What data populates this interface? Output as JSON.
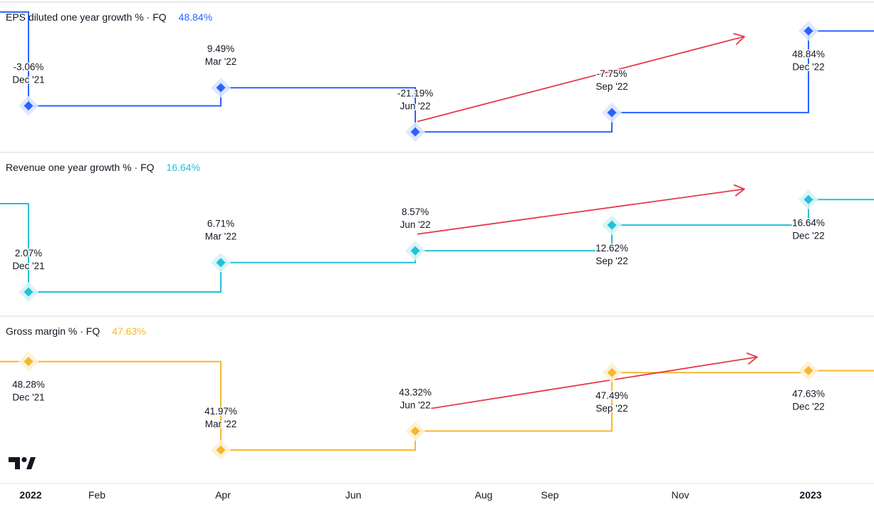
{
  "chart_data": {
    "type": "line",
    "x_axis": {
      "ticks": [
        {
          "label": "2022",
          "bold": true,
          "date": "2022-01-01"
        },
        {
          "label": "Feb",
          "bold": false,
          "date": "2022-02-01"
        },
        {
          "label": "Apr",
          "bold": false,
          "date": "2022-04-01"
        },
        {
          "label": "Jun",
          "bold": false,
          "date": "2022-06-01"
        },
        {
          "label": "Aug",
          "bold": false,
          "date": "2022-08-01"
        },
        {
          "label": "Sep",
          "bold": false,
          "date": "2022-09-01"
        },
        {
          "label": "Nov",
          "bold": false,
          "date": "2022-11-01"
        },
        {
          "label": "2023",
          "bold": true,
          "date": "2023-01-01"
        }
      ]
    },
    "panes": [
      {
        "id": "eps",
        "title": "EPS diluted one year growth % · FQ",
        "current_value": "48.84%",
        "color": "#2962ff",
        "highlight": "#dbe4ff",
        "ylim": [
          -26,
          58
        ],
        "leading_value": 62,
        "trailing_value": 48.84,
        "points": [
          {
            "date": "2021-12-31",
            "value": -3.06,
            "label_value": "-3.06%",
            "label_period": "Dec '21",
            "label_pos": "above"
          },
          {
            "date": "2022-03-31",
            "value": 9.49,
            "label_value": "9.49%",
            "label_period": "Mar '22",
            "label_pos": "above"
          },
          {
            "date": "2022-06-30",
            "value": -21.19,
            "label_value": "-21.19%",
            "label_period": "Jun '22",
            "label_pos": "above"
          },
          {
            "date": "2022-09-30",
            "value": -7.75,
            "label_value": "-7.75%",
            "label_period": "Sep '22",
            "label_pos": "above"
          },
          {
            "date": "2022-12-31",
            "value": 48.84,
            "label_value": "48.84%",
            "label_period": "Dec '22",
            "label_pos": "below"
          }
        ],
        "trend_arrow": {
          "from": [
            "2022-07-01",
            -14
          ],
          "to": [
            "2022-12-01",
            45
          ]
        }
      },
      {
        "id": "revenue",
        "title": "Revenue one year growth % · FQ",
        "current_value": "16.64%",
        "color": "#22c1d6",
        "highlight": "#d4f3f7",
        "ylim": [
          0.5,
          21.5
        ],
        "leading_value": 16,
        "trailing_value": 16.64,
        "points": [
          {
            "date": "2021-12-31",
            "value": 2.07,
            "label_value": "2.07%",
            "label_period": "Dec '21",
            "label_pos": "above"
          },
          {
            "date": "2022-03-31",
            "value": 6.71,
            "label_value": "6.71%",
            "label_period": "Mar '22",
            "label_pos": "above"
          },
          {
            "date": "2022-06-30",
            "value": 8.57,
            "label_value": "8.57%",
            "label_period": "Jun '22",
            "label_pos": "above"
          },
          {
            "date": "2022-09-30",
            "value": 12.62,
            "label_value": "12.62%",
            "label_period": "Sep '22",
            "label_pos": "below"
          },
          {
            "date": "2022-12-31",
            "value": 16.64,
            "label_value": "16.64%",
            "label_period": "Dec '22",
            "label_pos": "below"
          }
        ],
        "trend_arrow": {
          "from": [
            "2022-07-01",
            11.2
          ],
          "to": [
            "2022-12-01",
            18.3
          ]
        }
      },
      {
        "id": "gross_margin",
        "title": "Gross margin % · FQ",
        "current_value": "47.63%",
        "color": "#f5b82e",
        "highlight": "#fdf0d5",
        "ylim": [
          40.7,
          50.8
        ],
        "leading_value": 48.28,
        "trailing_value": 47.63,
        "points": [
          {
            "date": "2021-12-31",
            "value": 48.28,
            "label_value": "48.28%",
            "label_period": "Dec '21",
            "label_pos": "below"
          },
          {
            "date": "2022-03-31",
            "value": 41.97,
            "label_value": "41.97%",
            "label_period": "Mar '22",
            "label_pos": "above"
          },
          {
            "date": "2022-06-30",
            "value": 43.32,
            "label_value": "43.32%",
            "label_period": "Jun '22",
            "label_pos": "above"
          },
          {
            "date": "2022-09-30",
            "value": 47.49,
            "label_value": "47.49%",
            "label_period": "Sep '22",
            "label_pos": "below"
          },
          {
            "date": "2022-12-31",
            "value": 47.63,
            "label_value": "47.63%",
            "label_period": "Dec '22",
            "label_pos": "below"
          }
        ],
        "trend_arrow": {
          "from": [
            "2022-07-06",
            44.9
          ],
          "to": [
            "2022-12-07",
            48.6
          ]
        }
      }
    ],
    "annotation_color": "#e5394a"
  },
  "logo": {
    "text": "TV",
    "name": "tradingview-logo"
  }
}
